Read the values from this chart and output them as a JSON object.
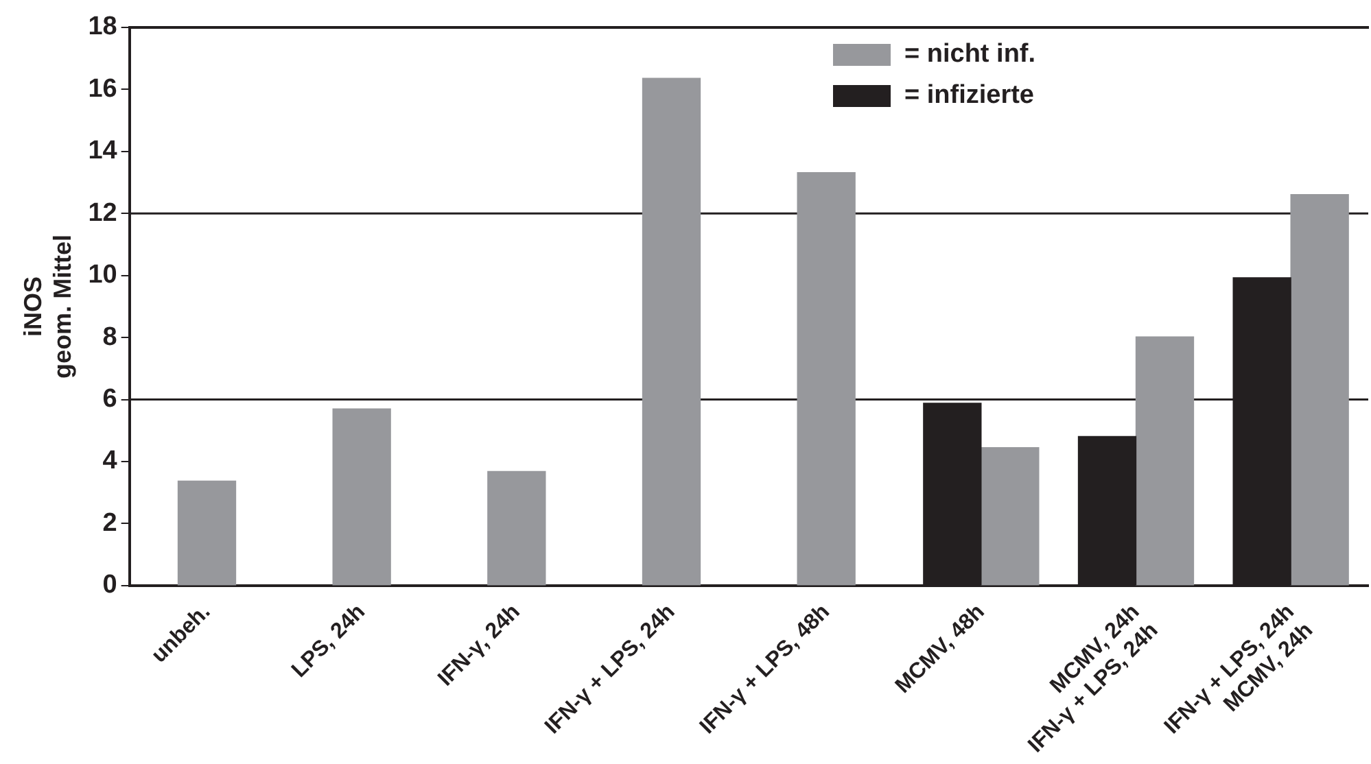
{
  "chart_data": {
    "type": "bar",
    "categories": [
      "unbeh.",
      "LPS, 24h",
      "IFN-γ, 24h",
      "IFN-γ + LPS, 24h",
      "IFN-γ + LPS, 48h",
      "MCMV, 48h",
      "MCMV, 24h\nIFN-γ + LPS, 24h",
      "IFN-γ + LPS, 24h\nMCMV, 24h"
    ],
    "series": [
      {
        "name": "= nicht inf.",
        "color": "#97989c",
        "values": [
          3.37,
          5.7,
          3.68,
          16.36,
          13.32,
          4.45,
          8.02,
          12.61
        ]
      },
      {
        "name": "= infizierte",
        "color": "#231f20",
        "values": [
          null,
          null,
          null,
          null,
          null,
          5.88,
          4.81,
          9.93
        ]
      }
    ],
    "ylabel": "iNOS\ngeom. Mittel",
    "ylim": [
      0,
      18
    ],
    "yticks": [
      0,
      2,
      4,
      6,
      8,
      10,
      12,
      14,
      16,
      18
    ],
    "grid": false,
    "ref_lines": [
      {
        "axis": "y",
        "value": 6
      },
      {
        "axis": "y",
        "value": 12
      }
    ],
    "legend": "top right"
  }
}
